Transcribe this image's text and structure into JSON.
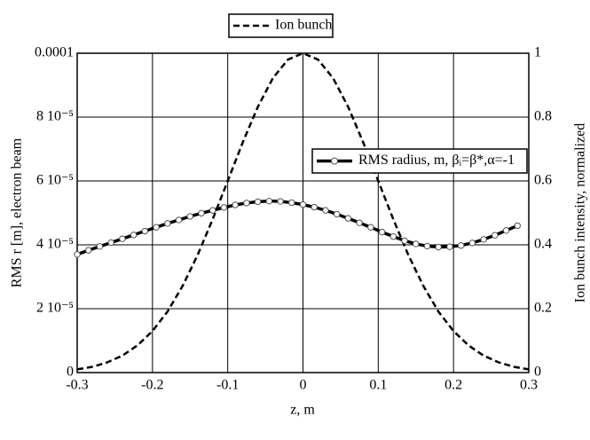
{
  "chart_data": {
    "type": "line",
    "xlabel": "z, m",
    "ylabel": "RMS r [m], electron beam",
    "y2label": "Ion bunch intensity, normalized",
    "xlim": [
      -0.3,
      0.3
    ],
    "xticks": [
      -0.3,
      -0.2,
      -0.1,
      0,
      0.1,
      0.2,
      0.3
    ],
    "ylim": [
      0,
      0.0001
    ],
    "yticks": [
      0,
      {
        "value": 2e-05,
        "label": "2 10⁻⁵"
      },
      {
        "value": 4e-05,
        "label": "4 10⁻⁵"
      },
      {
        "value": 6e-05,
        "label": "6 10⁻⁵"
      },
      {
        "value": 8e-05,
        "label": "8 10⁻⁵"
      },
      0.0001
    ],
    "y2lim": [
      0,
      1
    ],
    "y2ticks": [
      0,
      0.2,
      0.4,
      0.6,
      0.8,
      1
    ],
    "grid": true,
    "series": [
      {
        "name": "Ion bunch",
        "color": "#000000",
        "dashed": true,
        "axis": "y2",
        "x": [
          -0.3,
          -0.28,
          -0.26,
          -0.24,
          -0.22,
          -0.2,
          -0.18,
          -0.16,
          -0.14,
          -0.12,
          -0.1,
          -0.08,
          -0.06,
          -0.04,
          -0.02,
          0,
          0.02,
          0.04,
          0.06,
          0.08,
          0.1,
          0.12,
          0.14,
          0.16,
          0.18,
          0.2,
          0.22,
          0.24,
          0.26,
          0.28,
          0.3
        ],
        "values": [
          0.01,
          0.018,
          0.032,
          0.053,
          0.085,
          0.13,
          0.191,
          0.271,
          0.368,
          0.48,
          0.6,
          0.721,
          0.832,
          0.922,
          0.98,
          1,
          0.98,
          0.922,
          0.832,
          0.721,
          0.6,
          0.48,
          0.368,
          0.271,
          0.191,
          0.13,
          0.085,
          0.053,
          0.032,
          0.018,
          0.01
        ]
      },
      {
        "name": "RMS radius, m, βᵢ=β*,α=-1",
        "color": "#000000",
        "marker": "circle",
        "x": [
          -0.3,
          -0.285,
          -0.27,
          -0.255,
          -0.24,
          -0.225,
          -0.21,
          -0.195,
          -0.18,
          -0.165,
          -0.15,
          -0.135,
          -0.12,
          -0.105,
          -0.09,
          -0.075,
          -0.06,
          -0.045,
          -0.03,
          -0.015,
          0,
          0.015,
          0.03,
          0.045,
          0.06,
          0.075,
          0.09,
          0.105,
          0.12,
          0.135,
          0.15,
          0.165,
          0.18,
          0.195,
          0.21,
          0.225,
          0.24,
          0.255,
          0.27,
          0.285
        ],
        "values": [
          3.7e-05,
          3.83e-05,
          3.95e-05,
          4.07e-05,
          4.19e-05,
          4.31e-05,
          4.43e-05,
          4.55e-05,
          4.67e-05,
          4.78e-05,
          4.89e-05,
          4.99e-05,
          5.08e-05,
          5.17e-05,
          5.25e-05,
          5.31e-05,
          5.35e-05,
          5.37e-05,
          5.36e-05,
          5.32e-05,
          5.26e-05,
          5.18e-05,
          5.08e-05,
          4.96e-05,
          4.83e-05,
          4.69e-05,
          4.55e-05,
          4.4e-05,
          4.26e-05,
          4.13e-05,
          4.03e-05,
          3.96e-05,
          3.93e-05,
          3.94e-05,
          3.98e-05,
          4.06e-05,
          4.17e-05,
          4.3e-05,
          4.45e-05,
          4.6e-05
        ]
      }
    ]
  }
}
